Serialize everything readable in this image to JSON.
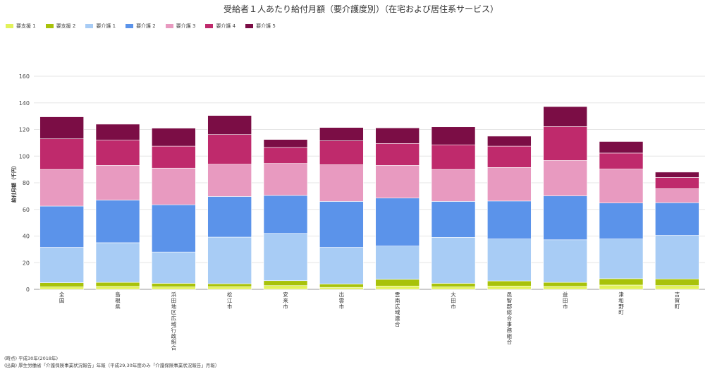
{
  "title": "受給者１人あたり給付月額（要介護度別）（在宅および居住系サービス）",
  "legend": [
    {
      "label": "要支援 1",
      "color": "#e2f25a"
    },
    {
      "label": "要支援 2",
      "color": "#a8c20a"
    },
    {
      "label": "要介護 1",
      "color": "#a8ccf5"
    },
    {
      "label": "要介護 2",
      "color": "#5b93ea"
    },
    {
      "label": "要介護 3",
      "color": "#e89ac0"
    },
    {
      "label": "要介護 4",
      "color": "#bf2a6c"
    },
    {
      "label": "要介護 5",
      "color": "#7b0d45"
    }
  ],
  "chart_data": {
    "type": "bar",
    "stacked": true,
    "ylabel": "給付月額（千円）",
    "ylim": [
      0,
      160
    ],
    "yticks": [
      0,
      20,
      40,
      60,
      80,
      100,
      120,
      140,
      160
    ],
    "grid": true,
    "legend_position": "top-left",
    "categories": [
      "全国",
      "島根県",
      "浜田地区広域行政組合",
      "松江市",
      "安来市",
      "出雲市",
      "雲南広域連合",
      "大田市",
      "邑智郡総合事務組合",
      "益田市",
      "津和野町",
      "吉賀町"
    ],
    "series": [
      {
        "name": "要支援 1",
        "values": [
          1.8,
          2.2,
          1.8,
          2.0,
          2.8,
          1.5,
          2.5,
          1.8,
          2.5,
          2.2,
          3.2,
          2.8
        ]
      },
      {
        "name": "要支援 2",
        "values": [
          3.2,
          3.0,
          2.7,
          2.2,
          3.7,
          2.5,
          5.0,
          2.7,
          3.8,
          3.0,
          4.8,
          5.0
        ]
      },
      {
        "name": "要介護 1",
        "values": [
          26.5,
          29.8,
          23.5,
          35.0,
          35.5,
          27.5,
          25.0,
          34.5,
          31.5,
          32.0,
          29.8,
          32.7
        ]
      },
      {
        "name": "要介護 2",
        "values": [
          31.0,
          32.0,
          35.5,
          30.5,
          28.5,
          34.5,
          36.0,
          27.0,
          28.5,
          33.0,
          27.0,
          24.5
        ]
      },
      {
        "name": "要介護 3",
        "values": [
          27.5,
          26.0,
          27.5,
          24.2,
          24.0,
          27.5,
          24.5,
          24.0,
          25.2,
          26.5,
          25.5,
          10.5
        ]
      },
      {
        "name": "要介護 4",
        "values": [
          23.0,
          19.0,
          16.5,
          22.3,
          12.0,
          18.0,
          16.5,
          18.5,
          16.0,
          25.5,
          12.0,
          8.5
        ]
      },
      {
        "name": "要介護 5",
        "values": [
          16.5,
          12.0,
          13.5,
          14.3,
          6.0,
          10.0,
          11.7,
          13.5,
          7.5,
          15.0,
          8.7,
          4.0
        ]
      }
    ]
  },
  "footnotes": [
    "(時点) 平成30年(2018年)",
    "(出典) 厚生労働省「介護保険事業状況報告」年報（平成29,30年度のみ「介護保険事業状況報告」月報）"
  ]
}
